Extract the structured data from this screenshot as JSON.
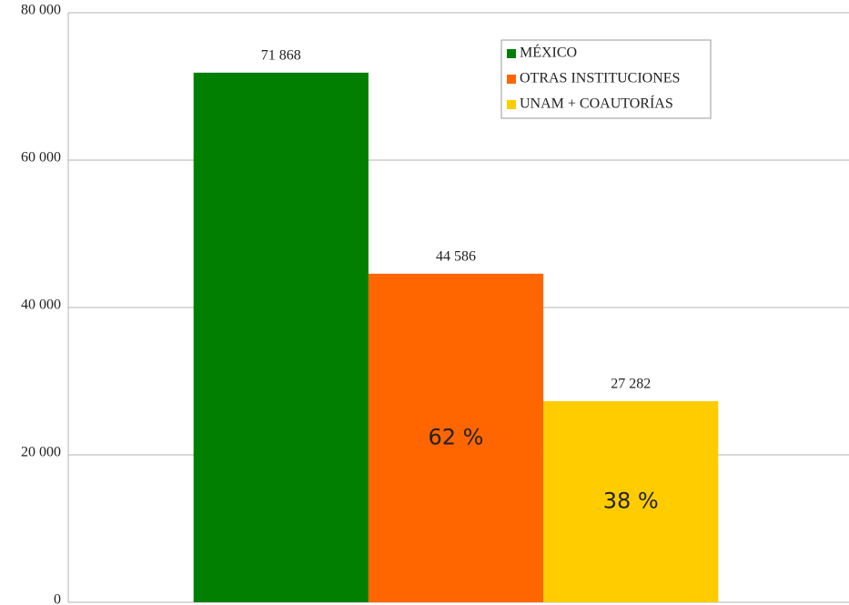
{
  "chart_data": {
    "type": "bar",
    "categories": [
      null
    ],
    "series": [
      {
        "name": "MÉXICO",
        "color": "#007f00",
        "values": [
          71868
        ],
        "value_labels": [
          "71 868"
        ]
      },
      {
        "name": "OTRAS INSTITUCIONES",
        "color": "#ff6600",
        "values": [
          44586
        ],
        "value_labels": [
          "44 586"
        ],
        "inner_label": "62 %"
      },
      {
        "name": "UNAM + COAUTORÍAS",
        "color": "#ffcc00",
        "values": [
          27282
        ],
        "value_labels": [
          "27 282"
        ],
        "inner_label": "38 %"
      }
    ],
    "ylim": [
      0,
      80000
    ],
    "yticks": [
      0,
      {
        "value": 20000,
        "label": "20 000"
      },
      {
        "value": 40000,
        "label": "40 000"
      },
      {
        "value": 60000,
        "label": "60 000"
      },
      {
        "value": 80000,
        "label": "80 000"
      }
    ],
    "grid": true,
    "legend": "top-right"
  }
}
